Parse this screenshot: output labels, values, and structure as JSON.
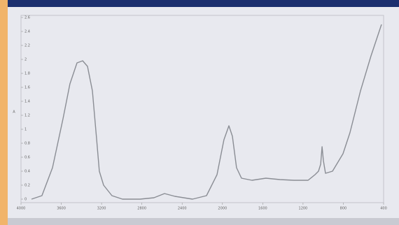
{
  "chart_data": {
    "type": "line",
    "y_label": "A",
    "x": [
      3896,
      3792,
      3687,
      3583,
      3514,
      3444,
      3388,
      3340,
      3291,
      3249,
      3222,
      3180,
      3097,
      2992,
      2818,
      2680,
      2575,
      2471,
      2297,
      2158,
      2054,
      1985,
      1936,
      1901,
      1860,
      1811,
      1707,
      1568,
      1429,
      1290,
      1150,
      1081,
      1046,
      1025,
      1011,
      998,
      977,
      907,
      803,
      734,
      629,
      525,
      421
    ],
    "series": [
      {
        "color": "#8a8d94",
        "values": [
          0,
          0.05,
          0.45,
          1.15,
          1.65,
          1.95,
          1.98,
          1.9,
          1.55,
          0.85,
          0.4,
          0.2,
          0.05,
          0,
          0,
          0.02,
          0.08,
          0.04,
          0,
          0.05,
          0.35,
          0.85,
          1.05,
          0.9,
          0.45,
          0.3,
          0.27,
          0.3,
          0.28,
          0.27,
          0.27,
          0.35,
          0.4,
          0.5,
          0.75,
          0.55,
          0.37,
          0.4,
          0.65,
          0.95,
          1.55,
          2.05,
          2.5
        ]
      }
    ],
    "xlim": [
      4000,
      400
    ],
    "xticks": [
      4000,
      3600,
      3200,
      2800,
      2400,
      2000,
      1600,
      1200,
      800,
      400
    ],
    "ylim": [
      0,
      2.6
    ],
    "yticks": [
      0,
      0.2,
      0.4,
      0.6,
      0.8,
      1,
      1.2,
      1.4,
      1.6,
      1.8,
      2,
      2.2,
      2.4,
      2.6
    ],
    "grid": false
  }
}
